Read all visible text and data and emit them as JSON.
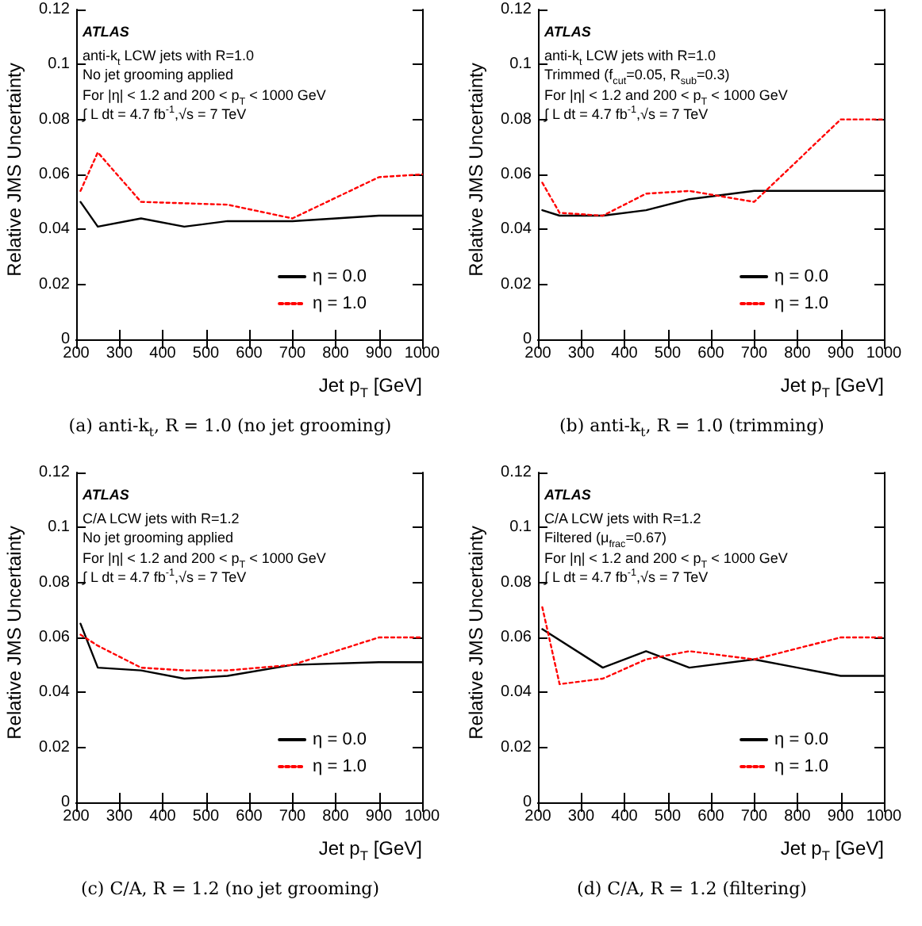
{
  "chart_data": [
    {
      "type": "line",
      "title": "(a) anti-k$_{t}$, R = 1.0 (no jet grooming)",
      "xlabel": "Jet p$_{T}$ [GeV]",
      "ylabel": "Relative JMS Uncertainty",
      "annotations": [
        "ATLAS",
        "anti-k$_{t}$ LCW jets with R=1.0",
        "No jet grooming applied",
        "For |η| < 1.2 and 200 < p$_{T}$ < 1000 GeV",
        "∫ L dt = 4.7 fb$^{-1}$,√s = 7 TeV"
      ],
      "series": [
        {
          "name": "η = 0.0",
          "color": "#000000",
          "line_style": "solid",
          "x": [
            210,
            250,
            350,
            450,
            550,
            700,
            900,
            1000
          ],
          "values": [
            0.05,
            0.041,
            0.044,
            0.041,
            0.043,
            0.043,
            0.045,
            0.045
          ]
        },
        {
          "name": "η = 1.0",
          "color": "#ff0000",
          "line_style": "dotted",
          "x": [
            210,
            250,
            350,
            550,
            700,
            900,
            1000
          ],
          "values": [
            0.054,
            0.068,
            0.05,
            0.049,
            0.044,
            0.059,
            0.06
          ]
        }
      ],
      "xlim": [
        200,
        1000
      ],
      "xticks": [
        200,
        300,
        400,
        500,
        600,
        700,
        800,
        900,
        1000
      ],
      "ylim": [
        0,
        0.12
      ],
      "yticks": [
        0,
        0.02,
        0.04,
        0.06,
        0.08,
        0.1,
        0.12
      ],
      "grid": false,
      "legend": "bottom right",
      "marker": "none"
    },
    {
      "type": "line",
      "title": "(b) anti-k$_{t}$, R = 1.0 (trimming)",
      "xlabel": "Jet p$_{T}$ [GeV]",
      "ylabel": "Relative JMS Uncertainty",
      "annotations": [
        "ATLAS",
        "anti-k$_{t}$ LCW jets with R=1.0",
        "Trimmed (f$_{cut}$=0.05, R$_{sub}$=0.3)",
        "For |η| < 1.2 and 200 < p$_{T}$ < 1000 GeV",
        "∫ L dt = 4.7 fb$^{-1}$,√s = 7 TeV"
      ],
      "series": [
        {
          "name": "η = 0.0",
          "color": "#000000",
          "line_style": "solid",
          "x": [
            210,
            250,
            350,
            450,
            550,
            700,
            900,
            1000
          ],
          "values": [
            0.047,
            0.045,
            0.045,
            0.047,
            0.051,
            0.054,
            0.054,
            0.054
          ]
        },
        {
          "name": "η = 1.0",
          "color": "#ff0000",
          "line_style": "dotted",
          "x": [
            210,
            250,
            350,
            450,
            550,
            700,
            900,
            1000
          ],
          "values": [
            0.057,
            0.046,
            0.045,
            0.053,
            0.054,
            0.05,
            0.08,
            0.08
          ]
        }
      ],
      "xlim": [
        200,
        1000
      ],
      "xticks": [
        200,
        300,
        400,
        500,
        600,
        700,
        800,
        900,
        1000
      ],
      "ylim": [
        0,
        0.12
      ],
      "yticks": [
        0,
        0.02,
        0.04,
        0.06,
        0.08,
        0.1,
        0.12
      ],
      "grid": false,
      "legend": "bottom right",
      "marker": "none"
    },
    {
      "type": "line",
      "title": "(c) C/A, R = 1.2 (no jet grooming)",
      "xlabel": "Jet p$_{T}$ [GeV]",
      "ylabel": "Relative JMS Uncertainty",
      "annotations": [
        "ATLAS",
        "C/A LCW jets with R=1.2",
        "No jet grooming applied",
        "For |η| < 1.2 and 200 < p$_{T}$ < 1000 GeV",
        "∫ L dt = 4.7 fb$^{-1}$,√s = 7 TeV"
      ],
      "series": [
        {
          "name": "η = 0.0",
          "color": "#000000",
          "line_style": "solid",
          "x": [
            210,
            250,
            350,
            450,
            550,
            700,
            900,
            1000
          ],
          "values": [
            0.065,
            0.049,
            0.048,
            0.045,
            0.046,
            0.05,
            0.051,
            0.051
          ]
        },
        {
          "name": "η = 1.0",
          "color": "#ff0000",
          "line_style": "dotted",
          "x": [
            210,
            250,
            350,
            450,
            550,
            700,
            900,
            1000
          ],
          "values": [
            0.061,
            0.057,
            0.049,
            0.048,
            0.048,
            0.05,
            0.06,
            0.06
          ]
        }
      ],
      "xlim": [
        200,
        1000
      ],
      "xticks": [
        200,
        300,
        400,
        500,
        600,
        700,
        800,
        900,
        1000
      ],
      "ylim": [
        0,
        0.12
      ],
      "yticks": [
        0,
        0.02,
        0.04,
        0.06,
        0.08,
        0.1,
        0.12
      ],
      "grid": false,
      "legend": "bottom right",
      "marker": "none"
    },
    {
      "type": "line",
      "title": "(d) C/A, R = 1.2 (filtering)",
      "xlabel": "Jet p$_{T}$ [GeV]",
      "ylabel": "Relative JMS Uncertainty",
      "annotations": [
        "ATLAS",
        "C/A LCW jets with R=1.2",
        "Filtered (μ$_{frac}$=0.67)",
        "For |η| < 1.2 and 200 < p$_{T}$ < 1000 GeV",
        "∫ L dt = 4.7 fb$^{-1}$,√s = 7 TeV"
      ],
      "series": [
        {
          "name": "η = 0.0",
          "color": "#000000",
          "line_style": "solid",
          "x": [
            210,
            350,
            450,
            550,
            700,
            900,
            1000
          ],
          "values": [
            0.063,
            0.049,
            0.055,
            0.049,
            0.052,
            0.046,
            0.046
          ]
        },
        {
          "name": "η = 1.0",
          "color": "#ff0000",
          "line_style": "dotted",
          "x": [
            210,
            250,
            350,
            450,
            550,
            700,
            900,
            1000
          ],
          "values": [
            0.071,
            0.043,
            0.045,
            0.052,
            0.055,
            0.052,
            0.06,
            0.06
          ]
        }
      ],
      "xlim": [
        200,
        1000
      ],
      "xticks": [
        200,
        300,
        400,
        500,
        600,
        700,
        800,
        900,
        1000
      ],
      "ylim": [
        0,
        0.12
      ],
      "yticks": [
        0,
        0.02,
        0.04,
        0.06,
        0.08,
        0.1,
        0.12
      ],
      "grid": false,
      "legend": "bottom right",
      "marker": "none"
    }
  ]
}
